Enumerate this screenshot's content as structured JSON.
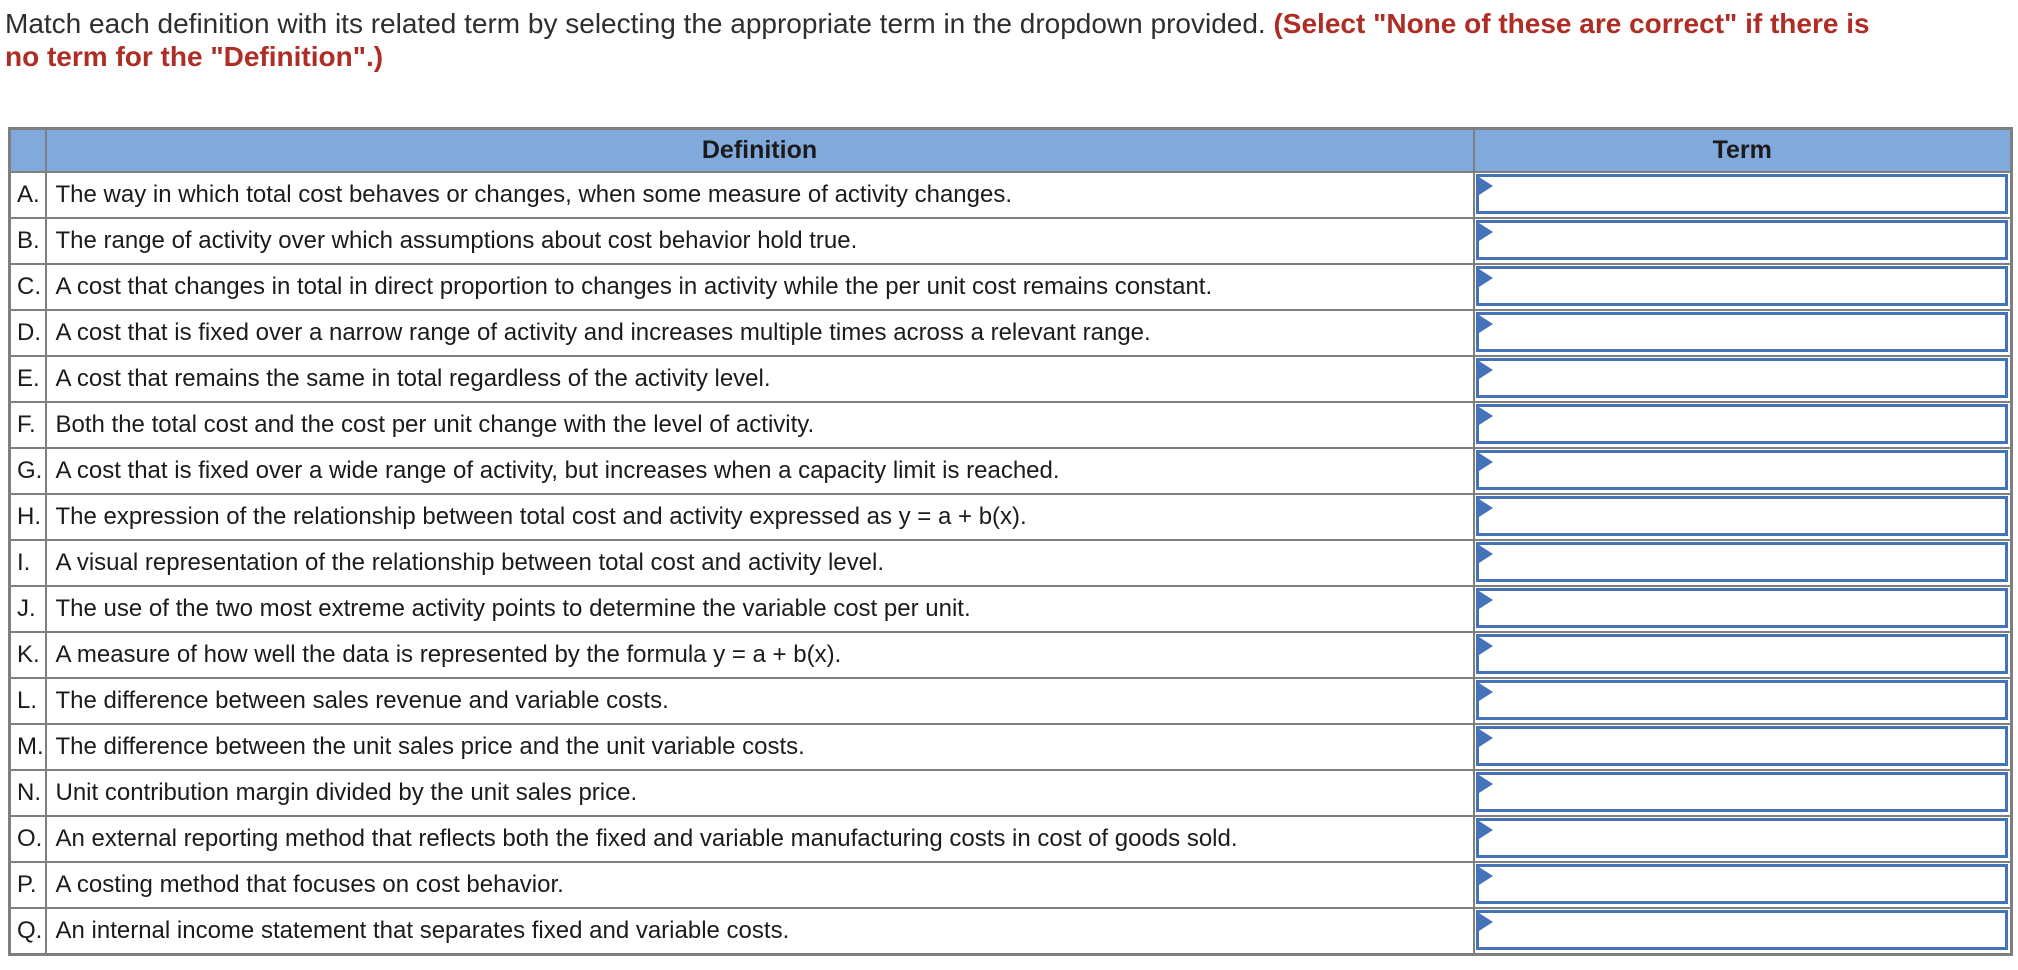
{
  "instructions": {
    "prefix": "Match each definition with its related term by selecting the appropriate term in the dropdown provided.",
    "emphasis": "(Select \"None of these are correct\" if there is no term for the \"Definition\".)"
  },
  "table": {
    "headers": {
      "letter": "",
      "definition": "Definition",
      "term": "Term"
    },
    "term_selected_value": "",
    "rows": [
      {
        "letter": "A.",
        "definition": "The way in which total cost behaves or changes, when some measure of activity changes."
      },
      {
        "letter": "B.",
        "definition": "The range of activity over which assumptions about cost behavior hold true."
      },
      {
        "letter": "C.",
        "definition": "A cost that changes in total in direct proportion to changes in activity while the per unit cost remains constant."
      },
      {
        "letter": "D.",
        "definition": "A cost that is fixed over a narrow range of activity and increases multiple times across a relevant range."
      },
      {
        "letter": "E.",
        "definition": "A cost that remains the same in total regardless of the activity level."
      },
      {
        "letter": "F.",
        "definition": "Both the total cost and the cost per unit change with the level of activity."
      },
      {
        "letter": "G.",
        "definition": "A cost that is fixed over a wide range of activity, but increases when a capacity limit is reached."
      },
      {
        "letter": "H.",
        "definition": "The expression of the relationship between total cost and activity expressed as y = a + b(x)."
      },
      {
        "letter": "I.",
        "definition": "A visual representation of the relationship between total cost and activity level."
      },
      {
        "letter": "J.",
        "definition": "The use of the two most extreme activity points to determine the variable cost per unit."
      },
      {
        "letter": "K.",
        "definition": "A measure of how well the data is represented by the formula y = a + b(x)."
      },
      {
        "letter": "L.",
        "definition": "The difference between sales revenue and variable costs."
      },
      {
        "letter": "M.",
        "definition": "The difference between the unit sales price and the unit variable costs."
      },
      {
        "letter": "N.",
        "definition": "Unit contribution margin divided by the unit sales price."
      },
      {
        "letter": "O.",
        "definition": "An external reporting method that reflects both the fixed and variable manufacturing costs in cost of goods sold."
      },
      {
        "letter": "P.",
        "definition": "A costing method that focuses on cost behavior."
      },
      {
        "letter": "Q.",
        "definition": "An internal income statement that separates fixed and variable costs."
      }
    ]
  },
  "icons": {
    "dropdown_marker": "triangle-right-icon"
  },
  "colors": {
    "header_bg": "#81A9DB",
    "grid_line": "#7F7F7F",
    "dropdown_accent": "#4573BA",
    "emphasis_text": "#AE2E26",
    "body_text": "#2E2E2E",
    "table_text": "#1B1B1B"
  }
}
